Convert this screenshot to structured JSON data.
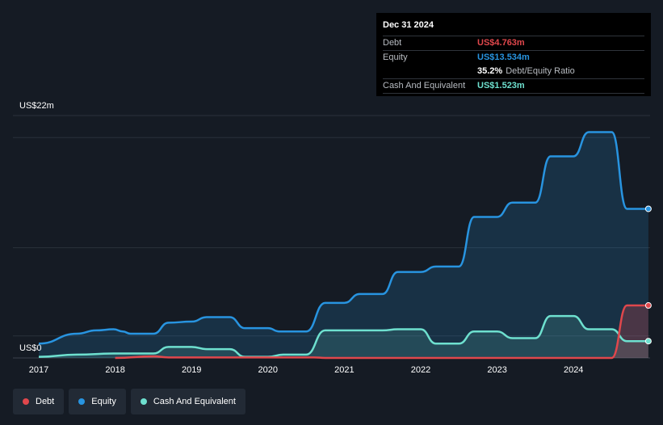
{
  "tooltip": {
    "date": "Dec 31 2024",
    "debt_label": "Debt",
    "debt_value": "US$4.763m",
    "equity_label": "Equity",
    "equity_value": "US$13.534m",
    "ratio_pct": "35.2%",
    "ratio_text": "Debt/Equity Ratio",
    "cash_label": "Cash And Equivalent",
    "cash_value": "US$1.523m"
  },
  "legend": {
    "debt": "Debt",
    "equity": "Equity",
    "cash": "Cash And Equivalent"
  },
  "colors": {
    "debt": "#e0474c",
    "equity": "#2894e0",
    "cash": "#6ee0cf",
    "background": "#151b24"
  },
  "chart_data": {
    "type": "area",
    "ylabel_top": "US$22m",
    "ylabel_bottom": "US$0",
    "ylim": [
      0,
      22
    ],
    "xlim": [
      2017.0,
      2024.98
    ],
    "x_ticks": [
      "2017",
      "2018",
      "2019",
      "2020",
      "2021",
      "2022",
      "2023",
      "2024"
    ],
    "grid": true,
    "legend_position": "bottom-left",
    "series": [
      {
        "name": "Equity",
        "x": [
          2017.0,
          2017.5,
          2017.75,
          2017.98,
          2018.1,
          2018.2,
          2018.5,
          2018.7,
          2019.0,
          2019.2,
          2019.5,
          2019.7,
          2020.0,
          2020.15,
          2020.5,
          2020.75,
          2021.0,
          2021.2,
          2021.5,
          2021.7,
          2022.0,
          2022.2,
          2022.5,
          2022.7,
          2023.0,
          2023.2,
          2023.5,
          2023.7,
          2024.0,
          2024.2,
          2024.5,
          2024.7,
          2024.98
        ],
        "y": [
          1.3,
          2.2,
          2.5,
          2.6,
          2.4,
          2.2,
          2.2,
          3.2,
          3.3,
          3.7,
          3.7,
          2.7,
          2.7,
          2.4,
          2.4,
          5.0,
          5.0,
          5.8,
          5.8,
          7.8,
          7.8,
          8.3,
          8.3,
          12.8,
          12.8,
          14.1,
          14.1,
          18.3,
          18.3,
          20.5,
          20.5,
          13.534,
          13.534
        ]
      },
      {
        "name": "Cash And Equivalent",
        "x": [
          2017.0,
          2017.5,
          2017.98,
          2018.5,
          2018.7,
          2019.0,
          2019.2,
          2019.5,
          2019.7,
          2020.0,
          2020.2,
          2020.5,
          2020.75,
          2021.0,
          2021.5,
          2021.7,
          2022.0,
          2022.2,
          2022.5,
          2022.7,
          2023.0,
          2023.2,
          2023.5,
          2023.7,
          2024.0,
          2024.2,
          2024.5,
          2024.7,
          2024.98
        ],
        "y": [
          0.1,
          0.3,
          0.4,
          0.4,
          1.0,
          1.0,
          0.8,
          0.8,
          0.1,
          0.1,
          0.3,
          0.3,
          2.5,
          2.5,
          2.5,
          2.6,
          2.6,
          1.3,
          1.3,
          2.4,
          2.4,
          1.8,
          1.8,
          3.8,
          3.8,
          2.6,
          2.6,
          1.523,
          1.523
        ]
      },
      {
        "name": "Debt",
        "x": [
          2018.0,
          2018.5,
          2018.7,
          2020.6,
          2020.75,
          2024.5,
          2024.7,
          2024.98
        ],
        "y": [
          0.0,
          0.15,
          0.05,
          0.05,
          0.0,
          0.0,
          4.763,
          4.763
        ]
      }
    ]
  }
}
